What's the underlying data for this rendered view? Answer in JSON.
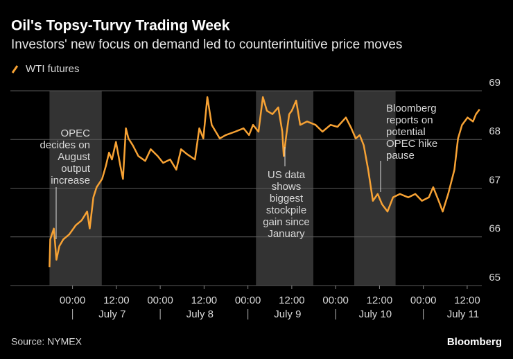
{
  "chart_data": {
    "type": "line",
    "title": "Oil's Topsy-Turvy Trading Week",
    "subtitle": "Investors' new focus on demand led to counterintuitive price moves",
    "source": "Source: NYMEX",
    "brand": "Bloomberg",
    "x": [
      -6.3,
      -6.1,
      -5.1,
      -4.4,
      -3.6,
      -2.5,
      -0.9,
      0.9,
      2.5,
      4.0,
      4.7,
      5.7,
      6.6,
      8.1,
      9.1,
      10.0,
      10.8,
      11.9,
      13.1,
      13.8,
      14.6,
      15.3,
      16.5,
      18.0,
      19.9,
      21.4,
      23.3,
      24.8,
      26.7,
      28.4,
      29.7,
      31.3,
      33.5,
      34.7,
      35.8,
      36.9,
      38.1,
      39.2,
      40.3,
      41.9,
      44.5,
      46.8,
      48.3,
      49.4,
      50.9,
      52.1,
      53.2,
      54.7,
      56.3,
      57.4,
      57.8,
      58.5,
      59.3,
      60.0,
      61.2,
      62.3,
      64.2,
      66.5,
      68.4,
      70.6,
      72.5,
      74.8,
      76.3,
      77.5,
      78.6,
      79.7,
      80.9,
      82.2,
      83.5,
      84.7,
      86.2,
      87.7,
      89.6,
      91.9,
      93.8,
      95.6,
      97.5,
      98.7,
      100.2,
      101.3,
      102.8,
      104.5,
      105.5,
      106.6,
      108.1,
      109.6,
      110.4,
      111.4
    ],
    "series": [
      {
        "name": "WTI futures",
        "color": "#f7a234",
        "values": [
          65.38,
          65.95,
          66.17,
          65.53,
          65.81,
          65.95,
          66.05,
          66.24,
          66.34,
          66.52,
          66.17,
          66.81,
          67.02,
          67.19,
          67.45,
          67.73,
          67.59,
          67.95,
          67.45,
          67.19,
          68.23,
          68.02,
          67.88,
          67.66,
          67.56,
          67.8,
          67.66,
          67.52,
          67.59,
          67.38,
          67.8,
          67.7,
          67.59,
          68.23,
          68.02,
          68.87,
          68.3,
          68.16,
          68.02,
          68.09,
          68.16,
          68.23,
          68.09,
          68.3,
          68.16,
          68.87,
          68.59,
          68.52,
          68.66,
          68.16,
          67.66,
          68.09,
          68.52,
          68.59,
          68.8,
          68.3,
          68.37,
          68.3,
          68.16,
          68.3,
          68.26,
          68.45,
          68.23,
          68.02,
          68.09,
          67.88,
          67.38,
          66.74,
          66.88,
          66.67,
          66.52,
          66.81,
          66.88,
          66.81,
          66.88,
          66.74,
          66.81,
          67.02,
          66.74,
          66.52,
          66.88,
          67.38,
          68.02,
          68.3,
          68.45,
          68.37,
          68.52,
          68.62
        ]
      }
    ],
    "xlim": [
      -17,
      112
    ],
    "xticks": [
      {
        "value": 0,
        "label": "00:00"
      },
      {
        "value": 12,
        "label": "12:00"
      },
      {
        "value": 24,
        "label": "00:00"
      },
      {
        "value": 36,
        "label": "12:00"
      },
      {
        "value": 48,
        "label": "00:00"
      },
      {
        "value": 60,
        "label": "12:00"
      },
      {
        "value": 72,
        "label": "00:00"
      },
      {
        "value": 84,
        "label": "12:00"
      },
      {
        "value": 96,
        "label": "00:00"
      },
      {
        "value": 108,
        "label": "12:00"
      }
    ],
    "day_ticks": [
      {
        "value": 0,
        "label": "July 7"
      },
      {
        "value": 24,
        "label": "July 8"
      },
      {
        "value": 48,
        "label": "July 9"
      },
      {
        "value": 72,
        "label": "July 10"
      },
      {
        "value": 96,
        "label": "July 11"
      }
    ],
    "ylim": [
      65,
      69
    ],
    "yticks": [
      65,
      66,
      67,
      68,
      69
    ],
    "grid": true,
    "shaded_periods": [
      [
        -6.3,
        8.0
      ],
      [
        50.2,
        65.9
      ],
      [
        77.1,
        88.4
      ]
    ],
    "annotations": [
      {
        "lines": [
          "OPEC",
          "decides on",
          "August",
          "output",
          "increase"
        ]
      },
      {
        "lines": [
          "US data",
          "shows",
          "biggest",
          "stockpile",
          "gain since",
          "January"
        ]
      },
      {
        "lines": [
          "Bloomberg",
          "reports on",
          "potential",
          "OPEC hike",
          "pause"
        ]
      }
    ]
  }
}
